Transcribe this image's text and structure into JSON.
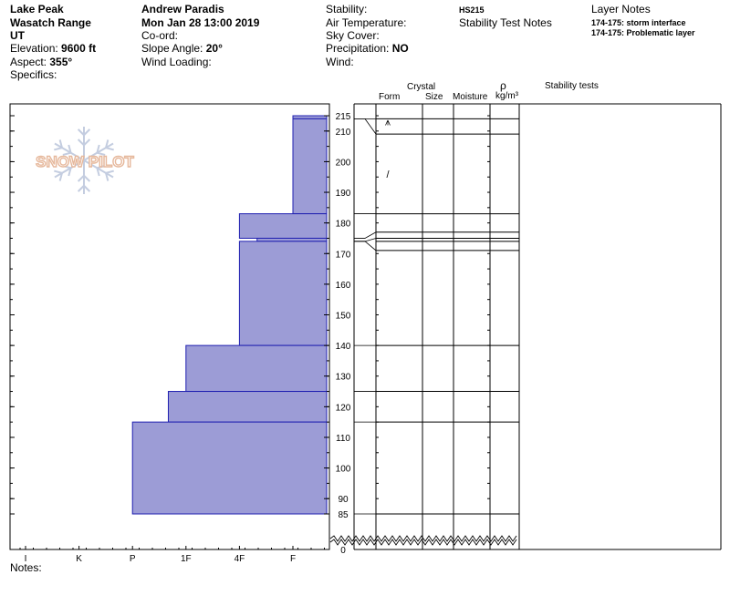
{
  "header": {
    "location": "Lake Peak",
    "range": "Wasatch Range",
    "state": "UT",
    "elevation_label": "Elevation:",
    "elevation_value": "9600 ft",
    "aspect_label": "Aspect:",
    "aspect_value": "355°",
    "specifics_label": "Specifics:",
    "observer": "Andrew Paradis",
    "datetime": "Mon Jan 28 13:00 2019",
    "coord_label": "Co-ord:",
    "slope_label": "Slope Angle:",
    "slope_value": "20°",
    "wind_loading_label": "Wind Loading:",
    "stability_label": "Stability:",
    "air_temp_label": "Air Temperature:",
    "sky_cover_label": "Sky Cover:",
    "precip_label": "Precipitation:",
    "precip_value": "NO",
    "wind_label": "Wind:",
    "hs": "HS215",
    "stability_notes_label": "Stability Test Notes",
    "layer_notes_label": "Layer Notes",
    "layer_notes": [
      "174-175: storm interface",
      "174-175: Problematic layer"
    ]
  },
  "columns": {
    "crystal": "Crystal",
    "form": "Form",
    "size": "Size",
    "moisture": "Moisture",
    "rho": "ρ",
    "density_unit": "kg/m³",
    "stability_tests": "Stability tests"
  },
  "logo_text": "SNOW PILOT",
  "notes_label": "Notes:",
  "colors": {
    "bar_fill": "#9c9cd6",
    "bar_stroke": "#1f1fb0",
    "logo": "#e6b89c",
    "flake": "#c4cde0"
  },
  "chart_data": {
    "type": "bar",
    "orientation": "horizontal",
    "x_axis_labels": [
      "I",
      "K",
      "P",
      "1F",
      "4F",
      "F"
    ],
    "height_ticks": [
      215,
      210,
      200,
      190,
      180,
      170,
      160,
      150,
      140,
      130,
      120,
      110,
      100,
      90,
      85,
      0
    ],
    "height_range": [
      85,
      215
    ],
    "hardness_scale": {
      "I": 0,
      "K": 1,
      "P": 2,
      "1F": 3,
      "4F": 4,
      "F": 5
    },
    "layers": [
      {
        "top": 215,
        "bottom": 214,
        "hardness": 5.0
      },
      {
        "top": 214,
        "bottom": 183,
        "hardness": 5.0
      },
      {
        "top": 183,
        "bottom": 175,
        "hardness": 4.0
      },
      {
        "top": 175,
        "bottom": 174,
        "hardness": 4.33
      },
      {
        "top": 174,
        "bottom": 140,
        "hardness": 4.0
      },
      {
        "top": 140,
        "bottom": 125,
        "hardness": 3.0
      },
      {
        "top": 125,
        "bottom": 115,
        "hardness": 2.67
      },
      {
        "top": 115,
        "bottom": 85,
        "hardness": 2.0
      }
    ],
    "layer_lines": [
      214,
      209,
      183,
      177,
      175,
      174,
      171,
      140,
      125,
      115,
      85
    ],
    "grain_symbols": [
      {
        "height": 213,
        "symbol": "⩚"
      },
      {
        "height": 196,
        "symbol": "/"
      }
    ]
  }
}
